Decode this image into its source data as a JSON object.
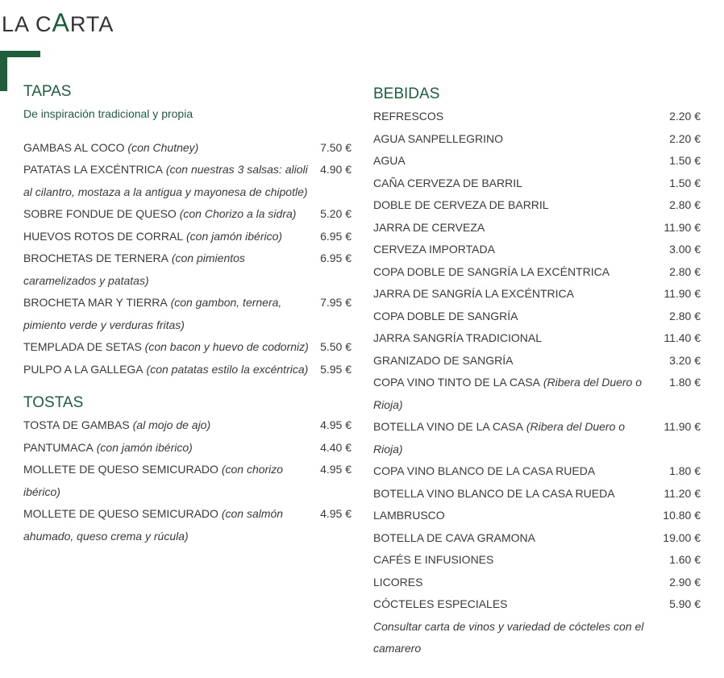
{
  "header": {
    "title_parts": [
      "LA C",
      "A",
      "RTA"
    ]
  },
  "columns": [
    {
      "sections": [
        {
          "title": "TAPAS",
          "subtitle": "De inspiración tradicional y propia",
          "items": [
            {
              "name": "GAMBAS AL COCO",
              "note": "(con Chutney)",
              "price": "7.50 €"
            },
            {
              "name": "PATATAS LA EXCÉNTRICA",
              "note": "(con nuestras 3 salsas: alioli al cilantro, mostaza a la antigua y mayonesa de chipotle)",
              "price": "4.90 €"
            },
            {
              "name": "SOBRE FONDUE DE QUESO",
              "note": "(con Chorizo a la sidra)",
              "price": "5.20 €"
            },
            {
              "name": "HUEVOS ROTOS DE CORRAL",
              "note": "(con jamón ibérico)",
              "price": "6.95 €"
            },
            {
              "name": "BROCHETAS DE TERNERA",
              "note": "(con pimientos caramelizados y patatas)",
              "price": "6.95 €"
            },
            {
              "name": "BROCHETA MAR Y TIERRA",
              "note": "(con gambon, ternera, pimiento verde y verduras fritas)",
              "price": "7.95 €"
            },
            {
              "name": "TEMPLADA DE SETAS",
              "note": "(con bacon y huevo de codorniz)",
              "price": "5.50 €"
            },
            {
              "name": "PULPO A LA GALLEGA",
              "note": "(con patatas estilo la excéntrica)",
              "price": "5.95 €"
            }
          ]
        },
        {
          "title": "TOSTAS",
          "items": [
            {
              "name": "TOSTA DE GAMBAS",
              "note": "(al mojo de ajo)",
              "price": "4.95 €"
            },
            {
              "name": "PANTUMACA",
              "note": "(con jamón ibérico)",
              "price": "4.40 €"
            },
            {
              "name": "MOLLETE DE QUESO SEMICURADO",
              "note": "(con chorizo ibérico)",
              "price": "4.95 €"
            },
            {
              "name": "MOLLETE DE QUESO SEMICURADO",
              "note": "(con salmón ahumado, queso crema y rúcula)",
              "price": "4.95 €"
            }
          ]
        }
      ]
    },
    {
      "sections": [
        {
          "title": "BEBIDAS",
          "items": [
            {
              "name": "REFRESCOS",
              "price": "2.20 €"
            },
            {
              "name": "AGUA SANPELLEGRINO",
              "price": "2.20 €"
            },
            {
              "name": "AGUA",
              "price": "1.50 €"
            },
            {
              "name": "CAÑA CERVEZA DE BARRIL",
              "price": "1.50 €"
            },
            {
              "name": "DOBLE DE CERVEZA DE BARRIL",
              "price": "2.80 €"
            },
            {
              "name": "JARRA DE CERVEZA",
              "price": "11.90 €"
            },
            {
              "name": "CERVEZA IMPORTADA",
              "price": "3.00 €"
            },
            {
              "name": "COPA DOBLE DE SANGRÍA LA EXCÉNTRICA",
              "price": "2.80 €"
            },
            {
              "name": "JARRA DE SANGRÍA LA EXCÉNTRICA",
              "price": "11.90 €"
            },
            {
              "name": "COPA DOBLE DE SANGRÍA",
              "price": "2.80 €"
            },
            {
              "name": "JARRA SANGRÍA TRADICIONAL",
              "price": "11.40 €"
            },
            {
              "name": "GRANIZADO DE SANGRÍA",
              "price": "3.20 €"
            },
            {
              "name": "COPA VINO TINTO DE LA CASA",
              "note": "(Ribera del Duero o Rioja)",
              "price": "1.80 €"
            },
            {
              "name": "BOTELLA VINO DE LA CASA",
              "note": "(Ribera del Duero o Rioja)",
              "price": "11.90 €"
            },
            {
              "name": "COPA VINO BLANCO DE LA CASA RUEDA",
              "price": "1.80 €"
            },
            {
              "name": "BOTELLA VINO BLANCO DE LA CASA RUEDA",
              "price": "11.20 €"
            },
            {
              "name": "LAMBRUSCO",
              "price": "10.80 €"
            },
            {
              "name": "BOTELLA DE CAVA GRAMONA",
              "price": "19.00 €"
            },
            {
              "name": "CAFÉS E INFUSIONES",
              "price": "1.60 €"
            },
            {
              "name": "LICORES",
              "price": "2.90 €"
            },
            {
              "name": "CÓCTELES ESPECIALES",
              "price": "5.90 €"
            }
          ],
          "footnote": "Consultar carta de vinos y variedad de cócteles con el camarero"
        }
      ]
    }
  ]
}
